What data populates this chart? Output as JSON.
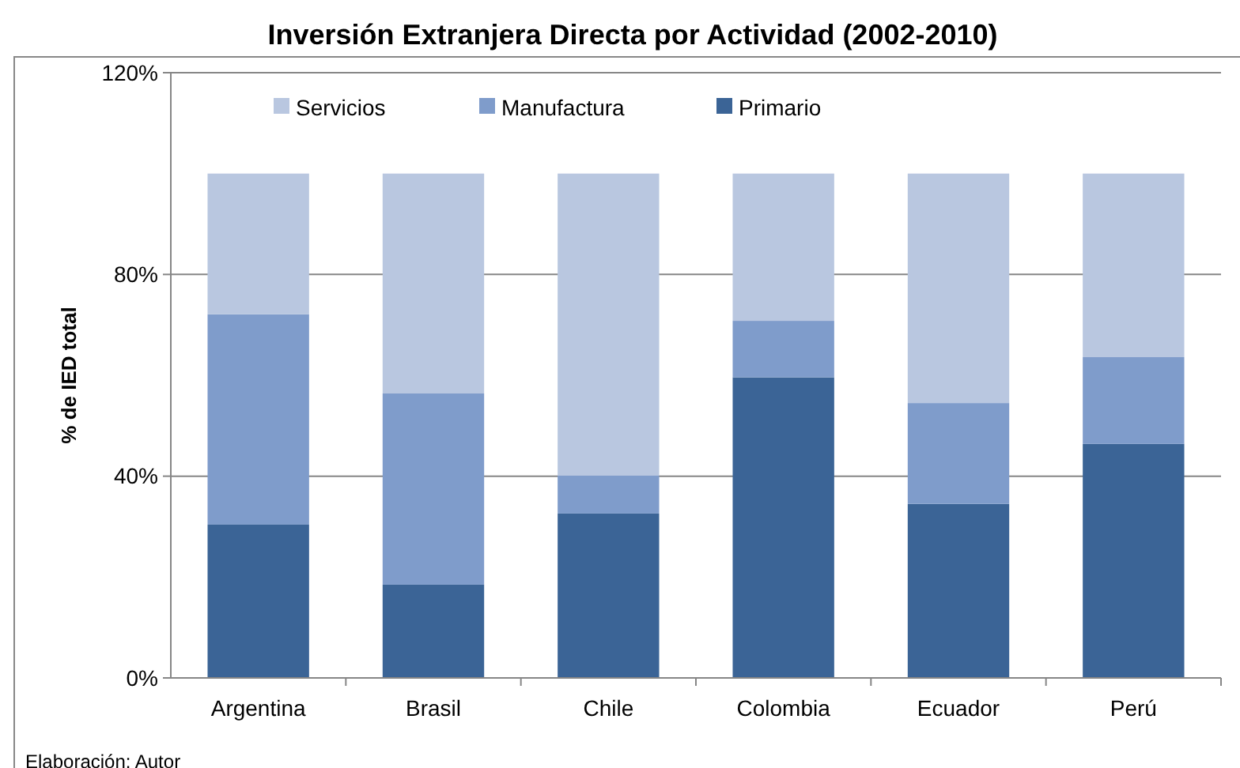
{
  "chart_data": {
    "type": "bar",
    "title": "Inversión Extranjera Directa por Actividad (2002-2010)",
    "ylabel": "% de IED total",
    "categories": [
      "Argentina",
      "Brasil",
      "Chile",
      "Colombia",
      "Ecuador",
      "Perú"
    ],
    "series": [
      {
        "name": "Primario",
        "color": "#3b6496",
        "values": [
          30.4,
          18.5,
          32.6,
          59.6,
          34.5,
          46.4
        ]
      },
      {
        "name": "Manufactura",
        "color": "#7f9ccb",
        "values": [
          41.7,
          37.9,
          7.5,
          11.2,
          20,
          17.2
        ]
      },
      {
        "name": "Servicios",
        "color": "#b9c7e0",
        "values": [
          27.9,
          43.6,
          59.9,
          29.2,
          45.5,
          36.4
        ]
      }
    ],
    "stacked": true,
    "ylim": [
      0,
      120
    ],
    "yticks": [
      {
        "value": 0,
        "label": "0%"
      },
      {
        "value": 40,
        "label": "40%"
      },
      {
        "value": 80,
        "label": "80%"
      },
      {
        "value": 120,
        "label": "120%"
      }
    ],
    "grid": "y",
    "legend": "top",
    "annotations": [
      "Elaboración: Autor"
    ]
  }
}
